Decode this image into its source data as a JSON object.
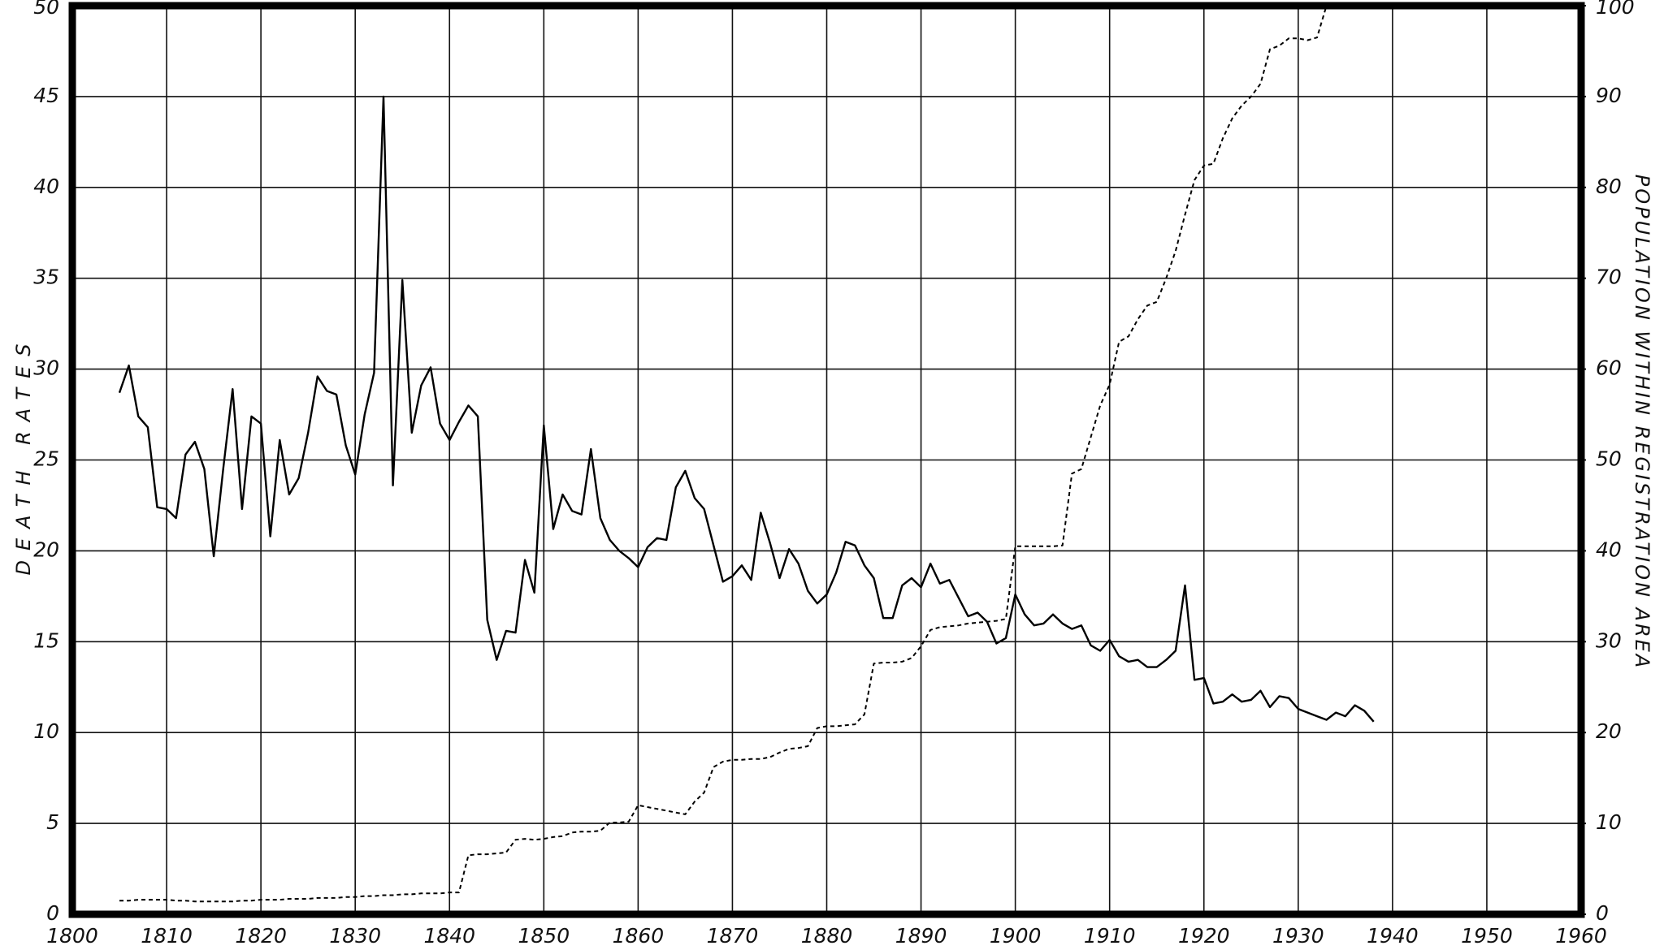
{
  "chart_data": {
    "type": "line",
    "ylabel": "DEATH RATES",
    "y2label": "POPULATION WITHIN REGISTRATION AREA",
    "xlim": [
      1800,
      1960
    ],
    "xticks": [
      1800,
      1810,
      1820,
      1830,
      1840,
      1850,
      1860,
      1870,
      1880,
      1890,
      1900,
      1910,
      1920,
      1930,
      1940,
      1950,
      1960
    ],
    "ylim": [
      0,
      50
    ],
    "yticks": [
      0,
      5,
      10,
      15,
      20,
      25,
      30,
      35,
      40,
      45,
      50
    ],
    "y2lim": [
      0,
      100
    ],
    "y2ticks": [
      0,
      10,
      20,
      30,
      40,
      50,
      60,
      70,
      80,
      90,
      100
    ],
    "grid": true,
    "series": [
      {
        "color": "#000000",
        "style": "solid",
        "x": [
          1805,
          1806,
          1807,
          1808,
          1809,
          1810,
          1811,
          1812,
          1813,
          1814,
          1815,
          1816,
          1817,
          1818,
          1819,
          1820,
          1821,
          1822,
          1823,
          1824,
          1825,
          1826,
          1827,
          1828,
          1829,
          1830,
          1831,
          1832,
          1833,
          1834,
          1835,
          1836,
          1837,
          1838,
          1839,
          1840,
          1841,
          1842,
          1843,
          1844,
          1845,
          1846,
          1847,
          1848,
          1849,
          1850,
          1851,
          1852,
          1853,
          1854,
          1855,
          1856,
          1857,
          1858,
          1859,
          1860,
          1861,
          1862,
          1863,
          1864,
          1865,
          1866,
          1867,
          1868,
          1869,
          1870,
          1871,
          1872,
          1873,
          1874,
          1875,
          1876,
          1877,
          1878,
          1879,
          1880,
          1881,
          1882,
          1883,
          1884,
          1885,
          1886,
          1887,
          1888,
          1889,
          1890,
          1891,
          1892,
          1893,
          1894,
          1895,
          1896,
          1897,
          1898,
          1899,
          1900,
          1901,
          1902,
          1903,
          1904,
          1905,
          1906,
          1907,
          1908,
          1909,
          1910,
          1911,
          1912,
          1913,
          1914,
          1915,
          1916,
          1917,
          1918,
          1919,
          1920,
          1921,
          1922,
          1923,
          1924,
          1925,
          1926,
          1927,
          1928,
          1929,
          1930,
          1931,
          1932,
          1933,
          1934,
          1935,
          1936,
          1937,
          1938
        ],
        "values": [
          28.7,
          30.2,
          27.4,
          26.8,
          22.4,
          22.3,
          21.8,
          25.3,
          26.0,
          24.5,
          19.7,
          24.5,
          28.9,
          22.3,
          27.4,
          27.0,
          20.8,
          26.1,
          23.1,
          24.0,
          26.5,
          29.6,
          28.8,
          28.6,
          25.8,
          24.2,
          27.5,
          29.8,
          45.0,
          23.6,
          34.9,
          26.5,
          29.1,
          30.1,
          27.0,
          26.1,
          27.1,
          28.0,
          27.4,
          16.2,
          14.0,
          15.6,
          15.5,
          19.5,
          17.7,
          26.9,
          21.2,
          23.1,
          22.2,
          22.0,
          25.6,
          21.8,
          20.6,
          20.0,
          19.6,
          19.1,
          20.2,
          20.7,
          20.6,
          23.5,
          24.4,
          22.9,
          22.3,
          20.3,
          18.3,
          18.6,
          19.2,
          18.4,
          22.1,
          20.4,
          18.5,
          20.1,
          19.3,
          17.8,
          17.1,
          17.6,
          18.8,
          20.5,
          20.3,
          19.2,
          18.5,
          16.3,
          16.3,
          18.1,
          18.5,
          18.0,
          19.3,
          18.2,
          18.4,
          17.4,
          16.4,
          16.6,
          16.1,
          14.9,
          15.2,
          17.6,
          16.5,
          15.9,
          16.0,
          16.5,
          16.0,
          15.7,
          15.9,
          14.8,
          14.5,
          15.1,
          14.2,
          13.9,
          14.0,
          13.6,
          13.6,
          14.0,
          14.5,
          18.1,
          12.9,
          13.0,
          11.6,
          11.7,
          12.1,
          11.7,
          11.8,
          12.3,
          11.4,
          12.0,
          11.9,
          11.3,
          11.1,
          10.9,
          10.7,
          11.1,
          10.9,
          11.5,
          11.2,
          10.6
        ]
      },
      {
        "color": "#000000",
        "style": "dashed",
        "axis": "y2",
        "x": [
          1805,
          1806,
          1807,
          1808,
          1809,
          1810,
          1811,
          1812,
          1813,
          1814,
          1815,
          1816,
          1817,
          1818,
          1819,
          1820,
          1821,
          1822,
          1823,
          1824,
          1825,
          1826,
          1827,
          1828,
          1829,
          1830,
          1831,
          1832,
          1833,
          1834,
          1835,
          1836,
          1837,
          1838,
          1839,
          1840,
          1841,
          1842,
          1843,
          1844,
          1845,
          1846,
          1847,
          1848,
          1849,
          1850,
          1851,
          1852,
          1853,
          1854,
          1855,
          1856,
          1857,
          1858,
          1859,
          1860,
          1861,
          1862,
          1863,
          1864,
          1865,
          1866,
          1867,
          1868,
          1869,
          1870,
          1871,
          1872,
          1873,
          1874,
          1875,
          1876,
          1877,
          1878,
          1879,
          1880,
          1881,
          1882,
          1883,
          1884,
          1885,
          1886,
          1887,
          1888,
          1889,
          1890,
          1891,
          1892,
          1893,
          1894,
          1895,
          1896,
          1897,
          1898,
          1899,
          1900,
          1901,
          1902,
          1903,
          1904,
          1905,
          1906,
          1907,
          1908,
          1909,
          1910,
          1911,
          1912,
          1913,
          1914,
          1915,
          1916,
          1917,
          1918,
          1919,
          1920,
          1921,
          1922,
          1923,
          1924,
          1925,
          1926,
          1927,
          1928,
          1929,
          1930,
          1931,
          1932,
          1933
        ],
        "values": [
          1.5,
          1.5,
          1.6,
          1.6,
          1.6,
          1.6,
          1.5,
          1.5,
          1.4,
          1.4,
          1.4,
          1.4,
          1.4,
          1.5,
          1.5,
          1.6,
          1.6,
          1.6,
          1.7,
          1.7,
          1.7,
          1.8,
          1.8,
          1.8,
          1.9,
          1.9,
          2.0,
          2.0,
          2.1,
          2.1,
          2.2,
          2.2,
          2.3,
          2.3,
          2.3,
          2.4,
          2.4,
          6.5,
          6.6,
          6.6,
          6.7,
          6.8,
          8.2,
          8.3,
          8.2,
          8.3,
          8.5,
          8.6,
          9.0,
          9.1,
          9.1,
          9.2,
          10.1,
          10.1,
          10.2,
          12.0,
          11.8,
          11.6,
          11.4,
          11.2,
          11.0,
          12.4,
          13.4,
          16.2,
          16.8,
          17.0,
          17.0,
          17.1,
          17.1,
          17.3,
          17.8,
          18.2,
          18.3,
          18.5,
          20.5,
          20.7,
          20.7,
          20.8,
          20.9,
          22.0,
          27.6,
          27.7,
          27.7,
          27.8,
          28.2,
          29.5,
          31.3,
          31.6,
          31.7,
          31.8,
          32.0,
          32.1,
          32.2,
          32.3,
          32.5,
          40.5,
          40.5,
          40.5,
          40.5,
          40.5,
          40.6,
          48.5,
          49.0,
          52.5,
          56.0,
          58.3,
          63.0,
          63.6,
          65.5,
          67.0,
          67.4,
          70.0,
          73.0,
          77.0,
          80.8,
          82.4,
          82.6,
          85.4,
          87.6,
          89.0,
          90.0,
          91.4,
          95.2,
          95.6,
          96.4,
          96.4,
          96.2,
          96.5,
          100
        ]
      }
    ]
  }
}
